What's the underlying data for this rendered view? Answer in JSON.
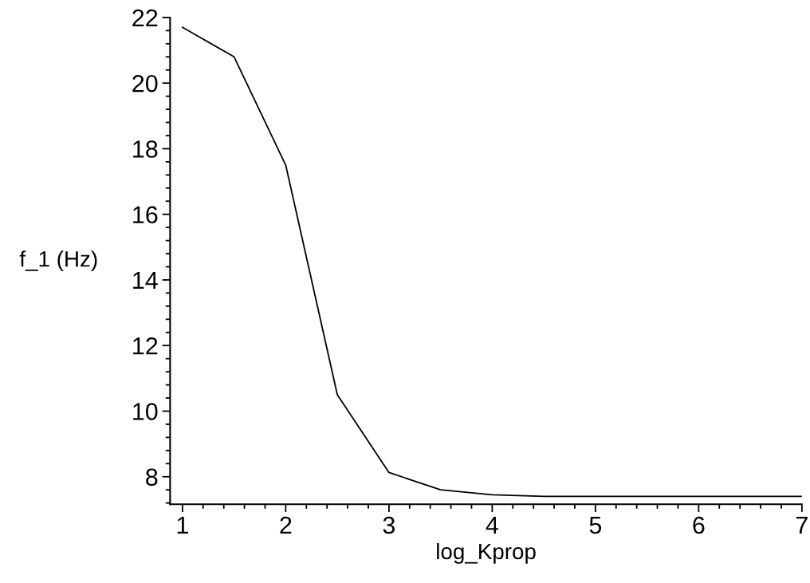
{
  "chart_data": {
    "type": "line",
    "xlabel": "log_Kprop",
    "ylabel": "f_1 (Hz)",
    "x": [
      1,
      1.5,
      2,
      2.5,
      3,
      3.5,
      4,
      4.5,
      5,
      5.5,
      6,
      6.5,
      7
    ],
    "series": [
      {
        "color": "#000000",
        "values": [
          21.7,
          20.8,
          17.5,
          10.5,
          8.13,
          7.6,
          7.45,
          7.4,
          7.4,
          7.4,
          7.4,
          7.4,
          7.4
        ]
      }
    ],
    "xlim": [
      0.88,
      7
    ],
    "ylim": [
      7.16,
      22
    ],
    "xticks": [
      1,
      {
        "value": 1.2,
        "label": null
      },
      {
        "value": 1.4,
        "label": null
      },
      {
        "value": 1.6,
        "label": null
      },
      {
        "value": 1.8,
        "label": null
      },
      2,
      {
        "value": 2.2,
        "label": null
      },
      {
        "value": 2.4,
        "label": null
      },
      {
        "value": 2.6,
        "label": null
      },
      {
        "value": 2.8,
        "label": null
      },
      3,
      {
        "value": 3.2,
        "label": null
      },
      {
        "value": 3.4,
        "label": null
      },
      {
        "value": 3.6,
        "label": null
      },
      {
        "value": 3.8,
        "label": null
      },
      4,
      {
        "value": 4.2,
        "label": null
      },
      {
        "value": 4.4,
        "label": null
      },
      {
        "value": 4.6,
        "label": null
      },
      {
        "value": 4.8,
        "label": null
      },
      5,
      {
        "value": 5.2,
        "label": null
      },
      {
        "value": 5.4,
        "label": null
      },
      {
        "value": 5.6,
        "label": null
      },
      {
        "value": 5.8,
        "label": null
      },
      6,
      {
        "value": 6.2,
        "label": null
      },
      {
        "value": 6.4,
        "label": null
      },
      {
        "value": 6.6,
        "label": null
      },
      {
        "value": 6.8,
        "label": null
      },
      7
    ],
    "yticks": [
      {
        "value": 7.2,
        "label": null
      },
      {
        "value": 7.6,
        "label": null
      },
      8,
      {
        "value": 8.4,
        "label": null
      },
      {
        "value": 8.8,
        "label": null
      },
      {
        "value": 9.2,
        "label": null
      },
      {
        "value": 9.6,
        "label": null
      },
      10,
      {
        "value": 10.4,
        "label": null
      },
      {
        "value": 10.8,
        "label": null
      },
      {
        "value": 11.2,
        "label": null
      },
      {
        "value": 11.6,
        "label": null
      },
      12,
      {
        "value": 12.4,
        "label": null
      },
      {
        "value": 12.8,
        "label": null
      },
      {
        "value": 13.2,
        "label": null
      },
      {
        "value": 13.6,
        "label": null
      },
      14,
      {
        "value": 14.4,
        "label": null
      },
      {
        "value": 14.8,
        "label": null
      },
      {
        "value": 15.2,
        "label": null
      },
      {
        "value": 15.6,
        "label": null
      },
      16,
      {
        "value": 16.4,
        "label": null
      },
      {
        "value": 16.8,
        "label": null
      },
      {
        "value": 17.2,
        "label": null
      },
      {
        "value": 17.6,
        "label": null
      },
      18,
      {
        "value": 18.4,
        "label": null
      },
      {
        "value": 18.8,
        "label": null
      },
      {
        "value": 19.2,
        "label": null
      },
      {
        "value": 19.6,
        "label": null
      },
      20,
      {
        "value": 20.4,
        "label": null
      },
      {
        "value": 20.8,
        "label": null
      },
      {
        "value": 21.2,
        "label": null
      },
      {
        "value": 21.6,
        "label": null
      },
      22
    ],
    "grid": false,
    "legend": false,
    "marker": "none",
    "line_style": "solid"
  }
}
